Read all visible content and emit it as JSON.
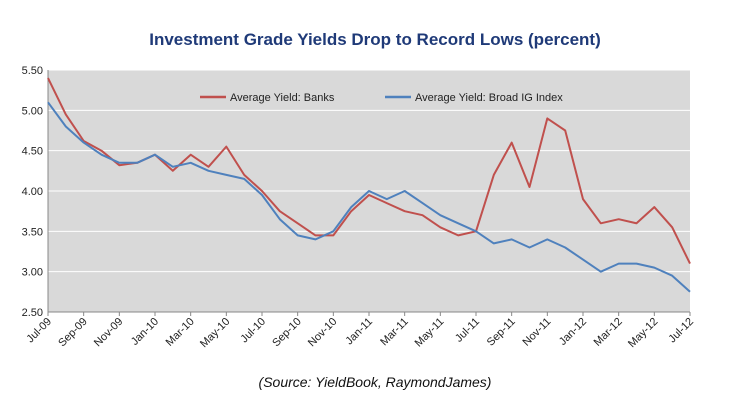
{
  "chart_data": {
    "type": "line",
    "title": "Investment Grade Yields Drop to Record Lows (percent)",
    "source": "(Source: YieldBook, RaymondJames)",
    "ylim": [
      2.5,
      5.5
    ],
    "yticks": [
      "2.50",
      "3.00",
      "3.50",
      "4.00",
      "4.50",
      "5.00",
      "5.50"
    ],
    "ytick_values": [
      2.5,
      3.0,
      3.5,
      4.0,
      4.5,
      5.0,
      5.5
    ],
    "xticks": [
      "Jul-09",
      "Sep-09",
      "Nov-09",
      "Jan-10",
      "Mar-10",
      "May-10",
      "Jul-10",
      "Sep-10",
      "Nov-10",
      "Jan-11",
      "Mar-11",
      "May-11",
      "Jul-11",
      "Sep-11",
      "Nov-11",
      "Jan-12",
      "Mar-12",
      "May-12",
      "Jul-12"
    ],
    "grid": true,
    "legend_position": "top",
    "x": [
      "Jul-09",
      "Aug-09",
      "Sep-09",
      "Oct-09",
      "Nov-09",
      "Dec-09",
      "Jan-10",
      "Feb-10",
      "Mar-10",
      "Apr-10",
      "May-10",
      "Jun-10",
      "Jul-10",
      "Aug-10",
      "Sep-10",
      "Oct-10",
      "Nov-10",
      "Dec-10",
      "Jan-11",
      "Feb-11",
      "Mar-11",
      "Apr-11",
      "May-11",
      "Jun-11",
      "Jul-11",
      "Aug-11",
      "Sep-11",
      "Oct-11",
      "Nov-11",
      "Dec-11",
      "Jan-12",
      "Feb-12",
      "Mar-12",
      "Apr-12",
      "May-12",
      "Jun-12",
      "Jul-12"
    ],
    "series": [
      {
        "name": "Average Yield: Banks",
        "color": "#c0504d",
        "values": [
          5.4,
          4.95,
          4.62,
          4.5,
          4.32,
          4.35,
          4.45,
          4.25,
          4.45,
          4.3,
          4.55,
          4.2,
          4.0,
          3.75,
          3.6,
          3.45,
          3.45,
          3.75,
          3.95,
          3.85,
          3.75,
          3.7,
          3.55,
          3.45,
          3.5,
          4.2,
          4.6,
          4.05,
          4.9,
          4.75,
          3.9,
          3.6,
          3.65,
          3.6,
          3.8,
          3.55,
          3.1
        ]
      },
      {
        "name": "Average Yield: Broad IG Index",
        "color": "#4f81bd",
        "values": [
          5.1,
          4.8,
          4.6,
          4.45,
          4.35,
          4.35,
          4.45,
          4.3,
          4.35,
          4.25,
          4.2,
          4.15,
          3.95,
          3.65,
          3.45,
          3.4,
          3.5,
          3.8,
          4.0,
          3.9,
          4.0,
          3.85,
          3.7,
          3.6,
          3.5,
          3.35,
          3.4,
          3.3,
          3.4,
          3.3,
          3.15,
          3.0,
          3.1,
          3.1,
          3.05,
          2.95,
          2.75
        ]
      }
    ]
  }
}
